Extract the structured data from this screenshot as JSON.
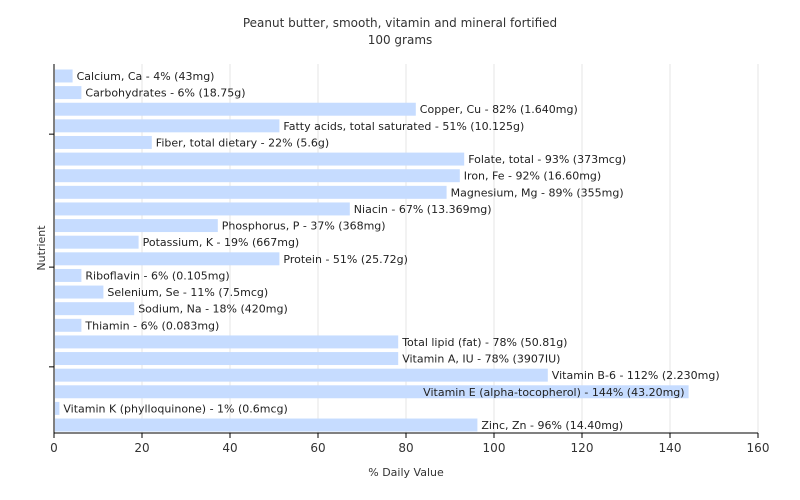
{
  "chart_data": {
    "type": "bar",
    "orientation": "horizontal",
    "title": "Peanut butter, smooth, vitamin and mineral fortified",
    "subtitle": "100 grams",
    "xlabel": "% Daily Value",
    "ylabel": "Nutrient",
    "xlim": [
      0,
      160
    ],
    "xticks": [
      0,
      20,
      40,
      60,
      80,
      100,
      120,
      140,
      160
    ],
    "grid": true,
    "bar_color": "#c6dcff",
    "categories": [
      "Calcium, Ca",
      "Carbohydrates",
      "Copper, Cu",
      "Fatty acids, total saturated",
      "Fiber, total dietary",
      "Folate, total",
      "Iron, Fe",
      "Magnesium, Mg",
      "Niacin",
      "Phosphorus, P",
      "Potassium, K",
      "Protein",
      "Riboflavin",
      "Selenium, Se",
      "Sodium, Na",
      "Thiamin",
      "Total lipid (fat)",
      "Vitamin A, IU",
      "Vitamin B-6",
      "Vitamin E (alpha-tocopherol)",
      "Vitamin K (phylloquinone)",
      "Zinc, Zn"
    ],
    "values": [
      4,
      6,
      82,
      51,
      22,
      93,
      92,
      89,
      67,
      37,
      19,
      51,
      6,
      11,
      18,
      6,
      78,
      78,
      112,
      144,
      1,
      96
    ],
    "labels": [
      "Calcium, Ca - 4% (43mg)",
      "Carbohydrates - 6% (18.75g)",
      "Copper, Cu - 82% (1.640mg)",
      "Fatty acids, total saturated - 51% (10.125g)",
      "Fiber, total dietary - 22% (5.6g)",
      "Folate, total - 93% (373mcg)",
      "Iron, Fe - 92% (16.60mg)",
      "Magnesium, Mg - 89% (355mg)",
      "Niacin - 67% (13.369mg)",
      "Phosphorus, P - 37% (368mg)",
      "Potassium, K - 19% (667mg)",
      "Protein - 51% (25.72g)",
      "Riboflavin - 6% (0.105mg)",
      "Selenium, Se - 11% (7.5mcg)",
      "Sodium, Na - 18% (420mg)",
      "Thiamin - 6% (0.083mg)",
      "Total lipid (fat) - 78% (50.81g)",
      "Vitamin A, IU - 78% (3907IU)",
      "Vitamin B-6 - 112% (2.230mg)",
      "Vitamin E (alpha-tocopherol) - 144% (43.20mg)",
      "Vitamin K (phylloquinone) - 1% (0.6mcg)",
      "Zinc, Zn - 96% (14.40mg)"
    ]
  }
}
